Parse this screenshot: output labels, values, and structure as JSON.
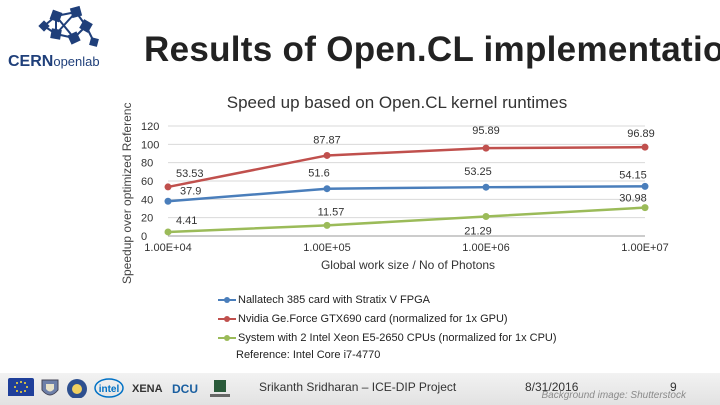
{
  "slide": {
    "title": "Results of Open.CL implementation",
    "logo_text": "CERNopenlab",
    "reference": "Reference: Intel Core i7-4770",
    "footer": {
      "presenter": "Srikanth Sridharan – ICE-DIP Project",
      "date": "8/31/2016",
      "page": "9",
      "image_credit": "Background image: Shutterstock"
    },
    "partner_logos": [
      "eu-flag",
      "university-crest",
      "research-crest",
      "intel",
      "xena",
      "dcu",
      "nui-maynooth"
    ]
  },
  "colors": {
    "nallatech": "#4a7ebb",
    "nvidia": "#c0504d",
    "intel": "#9bbb59",
    "grid": "#d9d9d9",
    "axis": "#999999"
  },
  "chart_data": {
    "type": "line",
    "title": "Speed up based on Open.CL kernel runtimes",
    "xlabel": "Global work size / No of Photons",
    "ylabel": "Speedup over optimized Referenc",
    "x_scale": "log",
    "x": [
      10000,
      100000,
      1000000,
      10000000
    ],
    "x_tick_labels": [
      "1.00E+04",
      "1.00E+05",
      "1.00E+06",
      "1.00E+07"
    ],
    "y_ticks": [
      0,
      20,
      40,
      60,
      80,
      100,
      120
    ],
    "ylim": [
      0,
      120
    ],
    "series": [
      {
        "name": "Nallatech 385 card with Stratix V FPGA",
        "color_key": "nallatech",
        "values": [
          37.9,
          51.6,
          53.25,
          54.15
        ],
        "labels": [
          "37.9",
          "51.6",
          "53.25",
          "54.15"
        ]
      },
      {
        "name": "Nvidia Ge.Force GTX690 card (normalized for 1x GPU)",
        "color_key": "nvidia",
        "values": [
          53.53,
          87.87,
          95.89,
          96.89
        ],
        "labels": [
          "53.53",
          "87.87",
          "95.89",
          "96.89"
        ]
      },
      {
        "name": "System with 2 Intel Xeon E5-2650 CPUs (normalized for 1x CPU)",
        "color_key": "intel",
        "values": [
          4.41,
          11.57,
          21.29,
          30.98
        ],
        "labels": [
          "4.41",
          "11.57",
          "21.29",
          "30.98"
        ]
      }
    ]
  }
}
